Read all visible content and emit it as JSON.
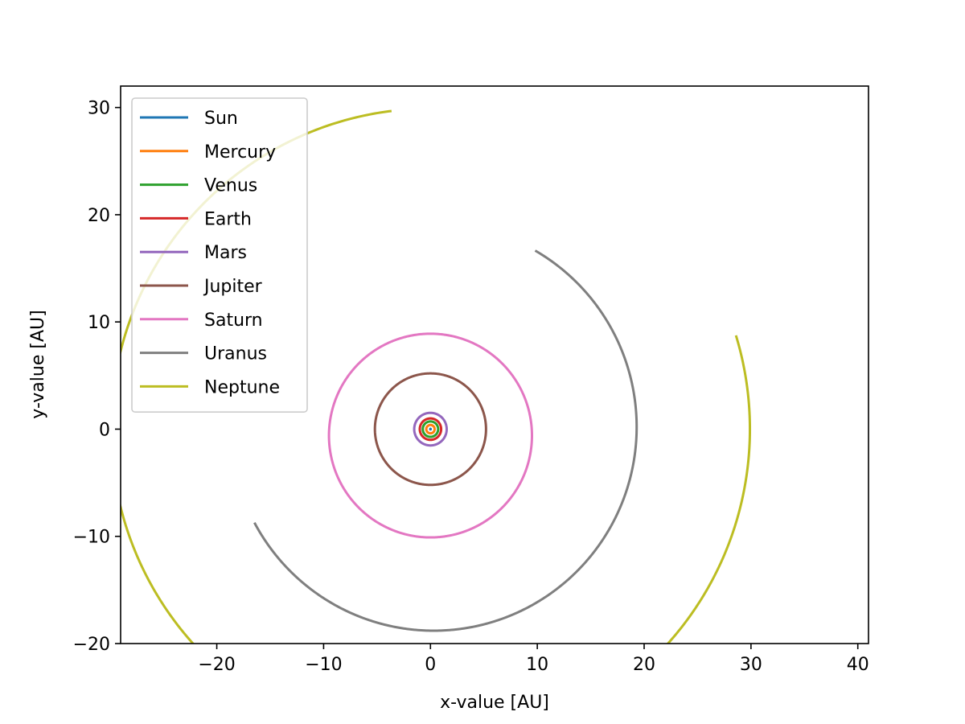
{
  "chart_data": {
    "type": "line",
    "title": "",
    "xlabel": "x-value [AU]",
    "ylabel": "y-value [AU]",
    "xlim": [
      -29,
      41
    ],
    "ylim": [
      -20,
      32
    ],
    "xticks": [
      -20,
      -10,
      0,
      10,
      20,
      30,
      40
    ],
    "yticks": [
      -20,
      -10,
      0,
      10,
      20,
      30
    ],
    "xtick_labels": [
      "−20",
      "−10",
      "0",
      "10",
      "20",
      "30",
      "40"
    ],
    "ytick_labels": [
      "−20",
      "−10",
      "0",
      "10",
      "20",
      "30"
    ],
    "grid": false,
    "legend_position": "upper-left",
    "series": [
      {
        "name": "Sun",
        "color": "#1f77b4",
        "center": [
          0,
          0
        ],
        "radius": 0.02,
        "start_deg": 0,
        "end_deg": 360
      },
      {
        "name": "Mercury",
        "color": "#ff7f0e",
        "center": [
          0,
          0
        ],
        "radius": 0.39,
        "start_deg": 0,
        "end_deg": 360
      },
      {
        "name": "Venus",
        "color": "#2ca02c",
        "center": [
          0,
          0
        ],
        "radius": 0.72,
        "start_deg": 0,
        "end_deg": 360
      },
      {
        "name": "Earth",
        "color": "#d62728",
        "center": [
          0,
          0
        ],
        "radius": 1.0,
        "start_deg": 0,
        "end_deg": 360
      },
      {
        "name": "Mars",
        "color": "#9467bd",
        "center": [
          0,
          0
        ],
        "radius": 1.52,
        "start_deg": 0,
        "end_deg": 360
      },
      {
        "name": "Jupiter",
        "color": "#8c564b",
        "center": [
          0,
          0
        ],
        "radius": 5.2,
        "start_deg": 0,
        "end_deg": 360
      },
      {
        "name": "Saturn",
        "color": "#e377c2",
        "center": [
          0,
          -0.6
        ],
        "radius": 9.5,
        "start_deg": 0,
        "end_deg": 360
      },
      {
        "name": "Uranus",
        "color": "#7f7f7f",
        "center": [
          0.3,
          0.2
        ],
        "radius": 19.0,
        "start_deg": 208,
        "end_deg": 420
      },
      {
        "name": "Neptune",
        "color": "#bcbd22",
        "center": [
          0,
          0
        ],
        "radius": 29.9,
        "start_deg": 97,
        "end_deg": 377
      }
    ]
  }
}
